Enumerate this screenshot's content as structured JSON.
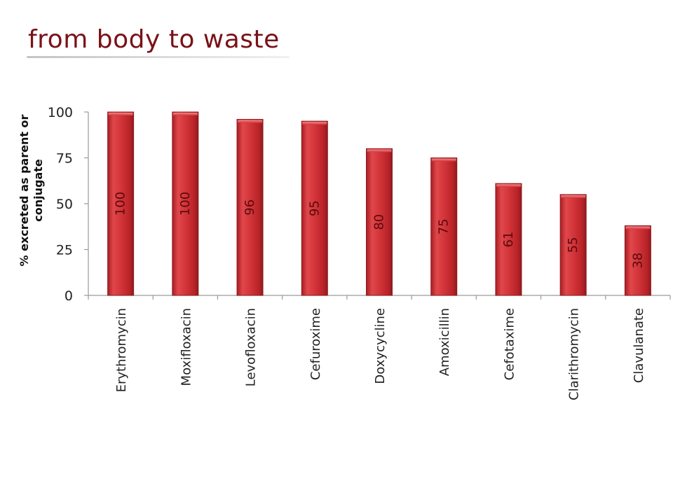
{
  "slide": {
    "title": "from body to waste"
  },
  "chart_data": {
    "type": "bar",
    "title": "",
    "xlabel": "",
    "ylabel": "% excreted as parent or conjugate",
    "categories": [
      "Erythromycin",
      "Moxifloxacin",
      "Levofloxacin",
      "Cefuroxime",
      "Doxycycline",
      "Amoxicillin",
      "Cefotaxime",
      "Clarithromycin",
      "Clavulanate"
    ],
    "values": [
      100,
      100,
      96,
      95,
      80,
      75,
      61,
      55,
      38
    ],
    "data_labels": [
      "100",
      "100",
      "96",
      "95",
      "80",
      "75",
      "61",
      "55",
      "38"
    ],
    "ylim": [
      0,
      100
    ],
    "yticks": [
      0,
      25,
      50,
      75,
      100
    ],
    "grid": false,
    "legend": "none",
    "colors": {
      "bar": "#d3353a",
      "bar_highlight": "#ef6a6d",
      "bar_edge": "#8e1a1e",
      "label_text": "#5a0a0c",
      "axis": "#9a9a9a",
      "title": "#7a1118"
    }
  }
}
